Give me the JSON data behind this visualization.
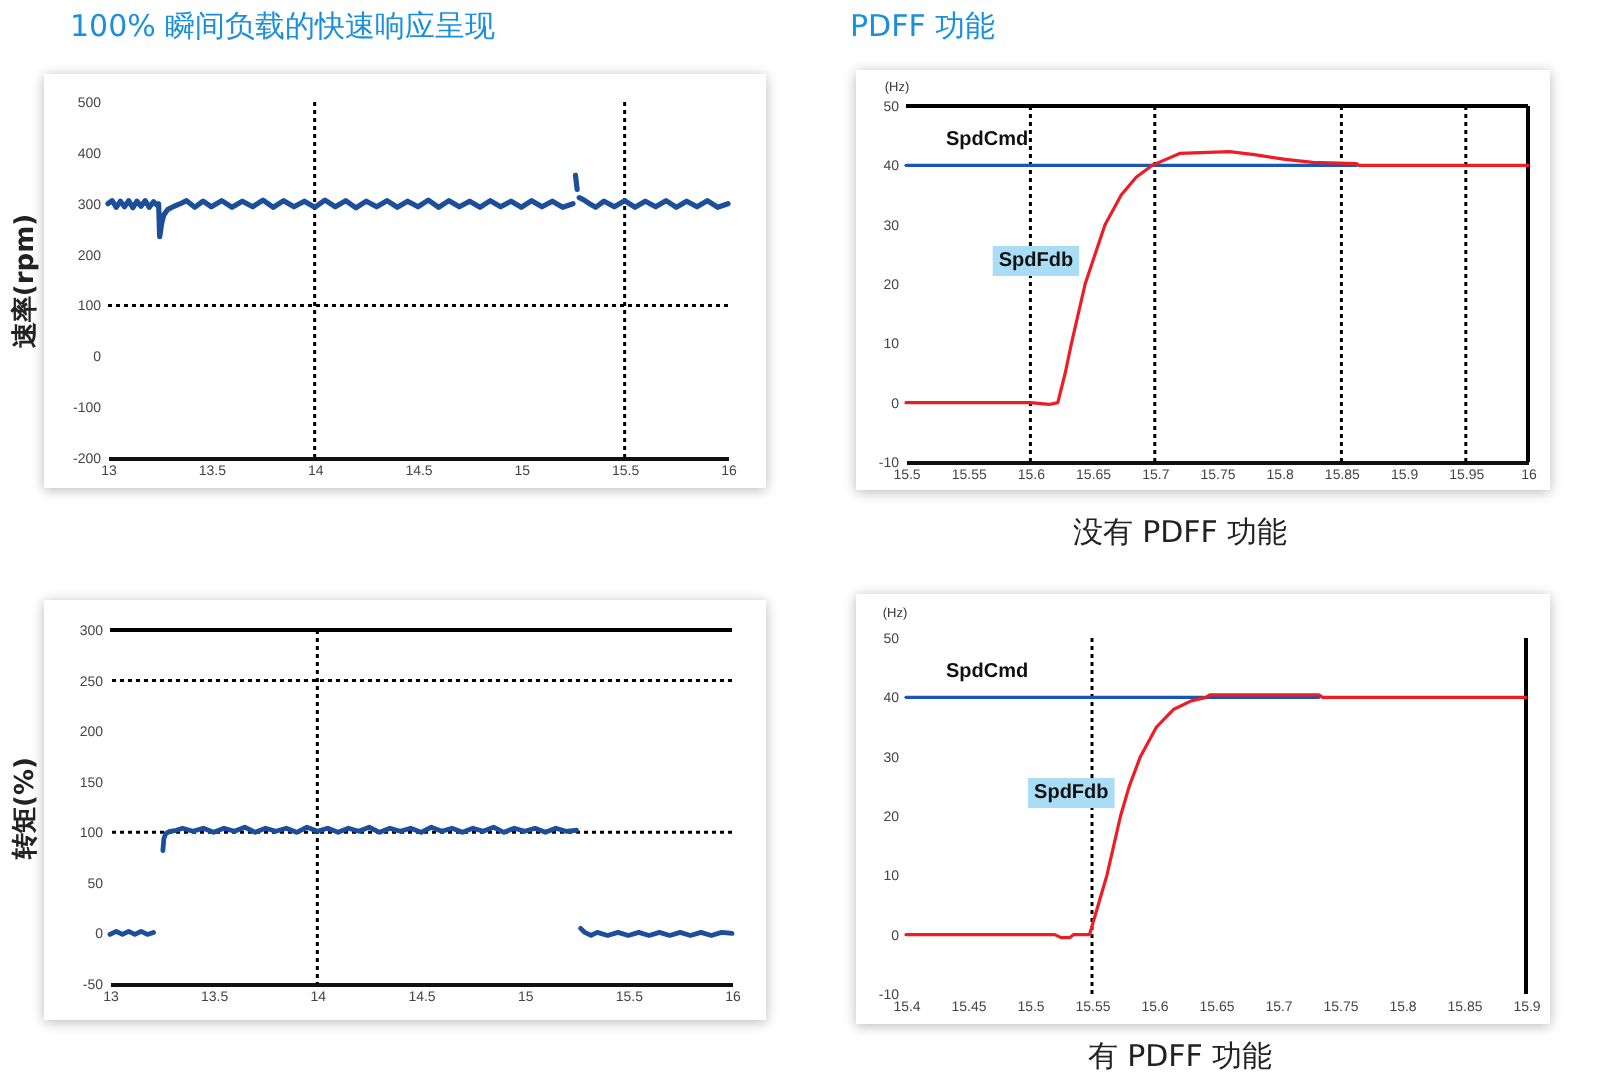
{
  "chart_data": [
    {
      "type": "line",
      "title": "100% 瞬间负载的快速响应呈现",
      "ylabel": "速率(rpm)",
      "xlim": [
        13,
        16
      ],
      "xticks": [
        13,
        13.5,
        14,
        14.5,
        15,
        15.5,
        16
      ],
      "ylim": [
        -200,
        500
      ],
      "yticks": [
        -200,
        -100,
        0,
        100,
        200,
        300,
        400,
        500
      ],
      "ref_lines": [
        {
          "axis": "x",
          "value": 14,
          "line_style": "dotted"
        },
        {
          "axis": "x",
          "value": 15.5,
          "line_style": "dotted"
        },
        {
          "axis": "y",
          "value": 100,
          "line_style": "dotted"
        }
      ],
      "series": [
        {
          "color": "#1d4e9b",
          "x": [
            13.0,
            13.02,
            13.04,
            13.06,
            13.08,
            13.1,
            13.12,
            13.14,
            13.16,
            13.18,
            13.2,
            13.22,
            13.24,
            13.245,
            13.25,
            13.26,
            13.27,
            13.29,
            13.32,
            13.35,
            13.38,
            13.42,
            13.46,
            13.5,
            13.55,
            13.6,
            13.65,
            13.7,
            13.75,
            13.8,
            13.85,
            13.9,
            13.95,
            14.0,
            14.05,
            14.1,
            14.15,
            14.2,
            14.25,
            14.3,
            14.35,
            14.4,
            14.45,
            14.5,
            14.55,
            14.6,
            14.65,
            14.7,
            14.75,
            14.8,
            14.85,
            14.9,
            14.95,
            15.0,
            15.05,
            15.1,
            15.15,
            15.2,
            15.25,
            15.255,
            15.262,
            15.27,
            15.275,
            15.28,
            15.3,
            15.33,
            15.36,
            15.4,
            15.45,
            15.5,
            15.55,
            15.6,
            15.65,
            15.7,
            15.75,
            15.8,
            15.85,
            15.9,
            15.95,
            16.0
          ],
          "values": [
            300,
            306,
            293,
            305,
            294,
            306,
            292,
            305,
            295,
            306,
            293,
            304,
            296,
            300,
            235,
            262,
            278,
            289,
            295,
            300,
            306,
            293,
            305,
            294,
            306,
            293,
            305,
            294,
            307,
            293,
            306,
            294,
            305,
            293,
            307,
            294,
            306,
            292,
            305,
            294,
            306,
            293,
            305,
            294,
            307,
            293,
            306,
            294,
            305,
            293,
            306,
            294,
            305,
            293,
            306,
            294,
            305,
            293,
            300,
            null,
            356,
            328,
            null,
            312,
            308,
            300,
            293,
            305,
            294,
            306,
            293,
            305,
            294,
            306,
            293,
            305,
            294,
            306,
            293,
            300
          ]
        }
      ]
    },
    {
      "type": "line",
      "title": "PDFF 功能",
      "ylabel": "(Hz)",
      "xlim": [
        15.5,
        16
      ],
      "xticks": [
        15.5,
        15.55,
        15.6,
        15.65,
        15.7,
        15.75,
        15.8,
        15.85,
        15.9,
        15.95,
        16
      ],
      "ylim": [
        -10,
        50
      ],
      "yticks": [
        -10,
        0,
        10,
        20,
        30,
        40,
        50
      ],
      "ref_lines": [
        {
          "axis": "x",
          "value": 15.6,
          "line_style": "dotted"
        },
        {
          "axis": "x",
          "value": 15.7,
          "line_style": "dotted"
        },
        {
          "axis": "x",
          "value": 15.85,
          "line_style": "dotted"
        },
        {
          "axis": "x",
          "value": 15.95,
          "line_style": "dotted"
        },
        {
          "axis": "y",
          "value": 50,
          "line_style": "solid"
        },
        {
          "axis": "x",
          "value": 16,
          "line_style": "solid"
        }
      ],
      "series": [
        {
          "name": "SpdCmd",
          "color": "#1a56b8",
          "x": [
            15.5,
            15.862
          ],
          "values": [
            40,
            40
          ]
        },
        {
          "name": "SpdFdb",
          "color": "#ee1c25",
          "x": [
            15.5,
            15.6,
            15.615,
            15.622,
            15.628,
            15.633,
            15.644,
            15.652,
            15.66,
            15.673,
            15.685,
            15.698,
            15.709,
            15.72,
            15.76,
            15.78,
            15.805,
            15.827,
            15.862,
            15.864,
            16
          ],
          "values": [
            0,
            0,
            -0.3,
            0,
            5,
            10,
            20,
            25,
            30,
            35,
            38,
            40,
            41,
            42,
            42.3,
            41.8,
            41,
            40.5,
            40.3,
            40,
            40
          ]
        }
      ],
      "annotations": [
        "没有 PDFF 功能"
      ]
    },
    {
      "type": "line",
      "ylabel": "转矩(%)",
      "xlim": [
        13,
        16
      ],
      "xticks": [
        13,
        13.5,
        14,
        14.5,
        15,
        15.5,
        16
      ],
      "ylim": [
        -50,
        300
      ],
      "yticks": [
        -50,
        0,
        50,
        100,
        150,
        200,
        250,
        300
      ],
      "ref_lines": [
        {
          "axis": "x",
          "value": 14,
          "line_style": "dotted"
        },
        {
          "axis": "y",
          "value": 100,
          "line_style": "dotted"
        },
        {
          "axis": "y",
          "value": 250,
          "line_style": "dotted"
        },
        {
          "axis": "y",
          "value": 300,
          "line_style": "solid"
        }
      ],
      "series": [
        {
          "color": "#1d4e9b",
          "x": [
            13.0,
            13.03,
            13.06,
            13.09,
            13.12,
            13.15,
            13.18,
            13.21,
            13.235,
            13.255,
            13.26,
            13.27,
            13.29,
            13.32,
            13.35,
            13.4,
            13.45,
            13.5,
            13.55,
            13.6,
            13.65,
            13.7,
            13.75,
            13.8,
            13.85,
            13.9,
            13.95,
            14.0,
            14.05,
            14.1,
            14.15,
            14.2,
            14.25,
            14.3,
            14.35,
            14.4,
            14.45,
            14.5,
            14.55,
            14.6,
            14.65,
            14.7,
            14.75,
            14.8,
            14.85,
            14.9,
            14.95,
            15.0,
            15.05,
            15.1,
            15.15,
            15.2,
            15.25,
            15.26,
            15.27,
            15.29,
            15.32,
            15.35,
            15.4,
            15.45,
            15.5,
            15.55,
            15.6,
            15.65,
            15.7,
            15.75,
            15.8,
            15.85,
            15.9,
            15.95,
            16.0
          ],
          "values": [
            -1,
            2,
            -1,
            2,
            -1,
            2,
            -1,
            1,
            null,
            82,
            94,
            99,
            101,
            102,
            104,
            101,
            104,
            100,
            104,
            101,
            105,
            100,
            104,
            101,
            104,
            100,
            105,
            101,
            104,
            100,
            104,
            101,
            105,
            100,
            104,
            101,
            104,
            100,
            105,
            101,
            104,
            100,
            104,
            101,
            105,
            100,
            104,
            101,
            104,
            100,
            104,
            101,
            102,
            null,
            5,
            1,
            -2,
            1,
            -2,
            1,
            -2,
            1,
            -2,
            1,
            -2,
            1,
            -2,
            1,
            -2,
            1,
            0
          ]
        }
      ]
    },
    {
      "type": "line",
      "ylabel": "(Hz)",
      "xlim": [
        15.4,
        15.9
      ],
      "xticks": [
        15.4,
        15.45,
        15.5,
        15.55,
        15.6,
        15.65,
        15.7,
        15.75,
        15.8,
        15.85,
        15.9
      ],
      "ylim": [
        -10,
        50
      ],
      "yticks": [
        -10,
        0,
        10,
        20,
        30,
        40,
        50
      ],
      "ref_lines": [
        {
          "axis": "x",
          "value": 15.55,
          "line_style": "dotted"
        },
        {
          "axis": "x",
          "value": 15.9,
          "line_style": "solid"
        }
      ],
      "series": [
        {
          "name": "SpdCmd",
          "color": "#1a56b8",
          "x": [
            15.4,
            15.733
          ],
          "values": [
            40,
            40
          ]
        },
        {
          "name": "SpdFdb",
          "color": "#ee1c25",
          "x": [
            15.4,
            15.52,
            15.525,
            15.532,
            15.535,
            15.548,
            15.555,
            15.562,
            15.573,
            15.58,
            15.589,
            15.602,
            15.616,
            15.63,
            15.642,
            15.645,
            15.733,
            15.736,
            15.9
          ],
          "values": [
            0,
            0,
            -0.5,
            -0.5,
            0,
            0,
            5,
            10,
            20,
            25,
            30,
            35,
            38,
            39.4,
            40,
            40.4,
            40.4,
            40,
            40
          ]
        }
      ],
      "annotations": [
        "有 PDFF 功能"
      ]
    }
  ]
}
